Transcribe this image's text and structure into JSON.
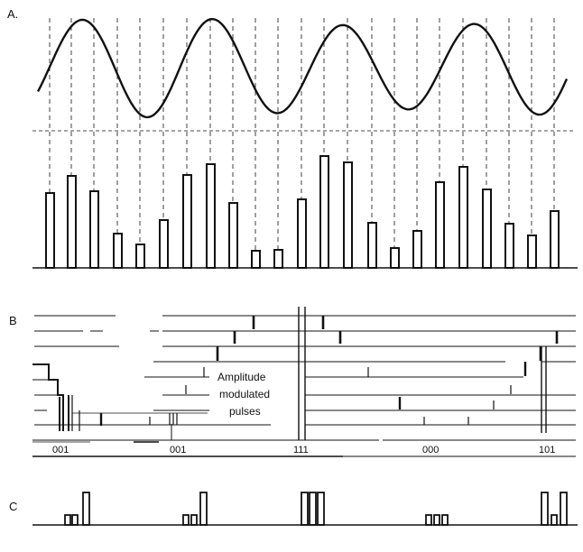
{
  "panels": {
    "a": {
      "label": "A."
    },
    "b": {
      "label": "B"
    },
    "c": {
      "label": "C"
    }
  },
  "annotation": {
    "line1": "Amplitude",
    "line2": "modulated",
    "line3": "pulses"
  },
  "codes": [
    "001",
    "001",
    "111",
    "000",
    "101"
  ],
  "ink_color": "#111111"
}
